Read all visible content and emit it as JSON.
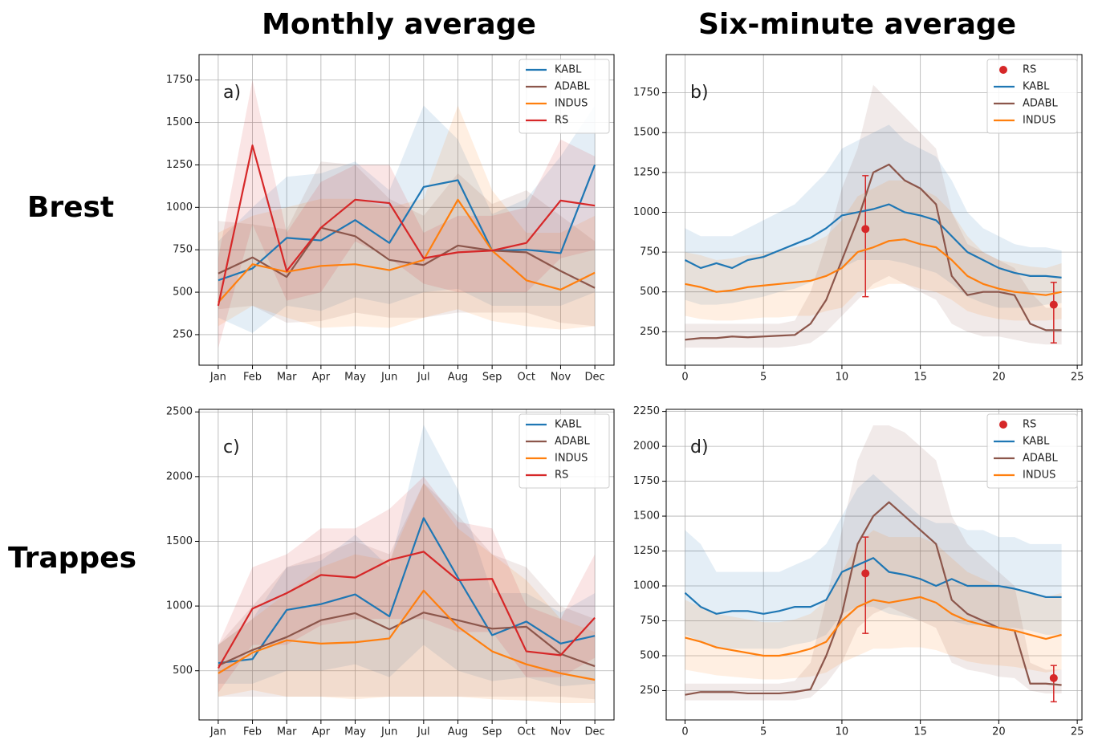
{
  "columns": [
    "Monthly average",
    "Six-minute average"
  ],
  "rows": [
    "Brest",
    "Trappes"
  ],
  "chart_data": [
    {
      "type": "line",
      "label": "a)",
      "grid": true,
      "legend": "upper right",
      "categories": [
        "Jan",
        "Feb",
        "Mar",
        "Apr",
        "May",
        "Jun",
        "Jul",
        "Aug",
        "Sep",
        "Oct",
        "Nov",
        "Dec"
      ],
      "ylim": [
        70,
        1900
      ],
      "yticks": [
        250,
        500,
        750,
        1000,
        1250,
        1500,
        1750
      ],
      "series": [
        {
          "name": "KABL",
          "color": "#1f77b4",
          "values": [
            570,
            640,
            820,
            805,
            925,
            790,
            1120,
            1160,
            745,
            750,
            730,
            1250
          ],
          "lower": [
            350,
            260,
            420,
            390,
            470,
            430,
            500,
            520,
            420,
            420,
            420,
            500
          ],
          "upper": [
            800,
            1000,
            1180,
            1200,
            1270,
            1100,
            1600,
            1400,
            960,
            1050,
            1300,
            1600
          ]
        },
        {
          "name": "ADABL",
          "color": "#8c564b",
          "values": [
            610,
            705,
            590,
            880,
            830,
            690,
            660,
            775,
            745,
            735,
            625,
            525
          ],
          "lower": [
            400,
            420,
            320,
            330,
            380,
            350,
            350,
            380,
            380,
            380,
            320,
            300
          ],
          "upper": [
            920,
            900,
            870,
            1270,
            1250,
            1050,
            950,
            1200,
            1020,
            1100,
            950,
            800
          ]
        },
        {
          "name": "INDUS",
          "color": "#ff7f0e",
          "values": [
            440,
            665,
            620,
            655,
            665,
            630,
            690,
            1045,
            745,
            570,
            515,
            615
          ],
          "lower": [
            300,
            420,
            350,
            290,
            300,
            290,
            350,
            400,
            330,
            300,
            280,
            300
          ],
          "upper": [
            850,
            950,
            1000,
            1050,
            1050,
            1000,
            1050,
            1600,
            1100,
            850,
            850,
            950
          ]
        },
        {
          "name": "RS",
          "color": "#d62728",
          "values": [
            420,
            1365,
            625,
            880,
            1045,
            1025,
            700,
            735,
            745,
            790,
            1040,
            1010
          ],
          "lower": [
            170,
            900,
            450,
            500,
            800,
            700,
            550,
            500,
            500,
            500,
            700,
            750
          ],
          "upper": [
            700,
            1750,
            850,
            1150,
            1250,
            1250,
            850,
            950,
            950,
            1000,
            1400,
            1300
          ]
        }
      ]
    },
    {
      "type": "line",
      "label": "b)",
      "grid": true,
      "legend": "upper right",
      "x": [
        0,
        1,
        2,
        3,
        4,
        5,
        6,
        7,
        8,
        9,
        10,
        11,
        12,
        13,
        14,
        15,
        16,
        17,
        18,
        19,
        20,
        21,
        22,
        23,
        24
      ],
      "xlim": [
        -1.2,
        25.3
      ],
      "xticks": [
        0,
        5,
        10,
        15,
        20,
        25
      ],
      "ylim": [
        40,
        1990
      ],
      "yticks": [
        250,
        500,
        750,
        1000,
        1250,
        1500,
        1750
      ],
      "series": [
        {
          "name": "RS",
          "color": "#d62728",
          "style": "errorbar",
          "x": [
            11.5,
            23.5
          ],
          "values": [
            895,
            420
          ],
          "lower": [
            470,
            180
          ],
          "upper": [
            1230,
            560
          ]
        },
        {
          "name": "KABL",
          "color": "#1f77b4",
          "values": [
            700,
            650,
            680,
            650,
            700,
            720,
            760,
            800,
            840,
            900,
            980,
            1000,
            1020,
            1050,
            1000,
            980,
            950,
            850,
            750,
            700,
            650,
            620,
            600,
            600,
            590
          ],
          "lower": [
            450,
            420,
            420,
            430,
            450,
            470,
            500,
            520,
            560,
            600,
            650,
            700,
            700,
            700,
            680,
            650,
            620,
            550,
            470,
            430,
            400,
            400,
            400,
            420,
            430
          ],
          "upper": [
            900,
            850,
            850,
            850,
            900,
            950,
            1000,
            1050,
            1150,
            1250,
            1400,
            1450,
            1500,
            1550,
            1450,
            1400,
            1350,
            1200,
            1000,
            900,
            850,
            800,
            780,
            780,
            760
          ]
        },
        {
          "name": "ADABL",
          "color": "#8c564b",
          "values": [
            200,
            210,
            210,
            220,
            215,
            220,
            225,
            230,
            300,
            450,
            700,
            950,
            1250,
            1300,
            1200,
            1150,
            1050,
            600,
            480,
            500,
            500,
            480,
            300,
            260,
            260
          ],
          "lower": [
            150,
            150,
            150,
            150,
            150,
            150,
            150,
            160,
            180,
            250,
            350,
            450,
            550,
            600,
            550,
            500,
            450,
            300,
            250,
            220,
            220,
            200,
            180,
            170,
            170
          ],
          "upper": [
            300,
            300,
            300,
            300,
            300,
            300,
            300,
            320,
            500,
            800,
            1150,
            1400,
            1800,
            1700,
            1600,
            1500,
            1400,
            1000,
            800,
            750,
            700,
            650,
            500,
            400,
            400
          ]
        },
        {
          "name": "INDUS",
          "color": "#ff7f0e",
          "values": [
            550,
            530,
            500,
            510,
            530,
            540,
            550,
            560,
            570,
            600,
            650,
            750,
            780,
            820,
            830,
            800,
            780,
            700,
            600,
            550,
            520,
            500,
            490,
            480,
            500
          ],
          "lower": [
            350,
            330,
            320,
            320,
            330,
            340,
            340,
            350,
            350,
            380,
            400,
            500,
            520,
            550,
            550,
            520,
            500,
            450,
            380,
            350,
            330,
            320,
            320,
            320,
            330
          ],
          "upper": [
            750,
            730,
            700,
            710,
            730,
            740,
            760,
            780,
            800,
            850,
            950,
            1100,
            1150,
            1200,
            1200,
            1150,
            1100,
            1000,
            850,
            750,
            700,
            680,
            660,
            650,
            680
          ]
        }
      ]
    },
    {
      "type": "line",
      "label": "c)",
      "grid": true,
      "legend": "upper right",
      "categories": [
        "Jan",
        "Feb",
        "Mar",
        "Apr",
        "May",
        "Jun",
        "Jul",
        "Aug",
        "Sep",
        "Oct",
        "Nov",
        "Dec"
      ],
      "ylim": [
        120,
        2520
      ],
      "yticks": [
        500,
        1000,
        1500,
        2000,
        2500
      ],
      "series": [
        {
          "name": "KABL",
          "color": "#1f77b4",
          "values": [
            560,
            590,
            970,
            1015,
            1090,
            920,
            1680,
            1220,
            775,
            880,
            710,
            770
          ],
          "lower": [
            400,
            400,
            500,
            500,
            550,
            450,
            700,
            500,
            420,
            450,
            380,
            400
          ],
          "upper": [
            700,
            900,
            1300,
            1350,
            1550,
            1300,
            2400,
            1900,
            1100,
            1100,
            950,
            1100
          ]
        },
        {
          "name": "ADABL",
          "color": "#8c564b",
          "values": [
            540,
            660,
            760,
            890,
            945,
            820,
            950,
            890,
            825,
            840,
            630,
            535
          ],
          "lower": [
            300,
            300,
            300,
            300,
            300,
            300,
            300,
            300,
            300,
            300,
            300,
            280
          ],
          "upper": [
            700,
            1000,
            1300,
            1400,
            1500,
            1400,
            1950,
            1700,
            1400,
            1300,
            1000,
            900
          ]
        },
        {
          "name": "INDUS",
          "color": "#ff7f0e",
          "values": [
            480,
            640,
            735,
            710,
            720,
            750,
            1120,
            840,
            650,
            550,
            480,
            430
          ],
          "lower": [
            300,
            350,
            300,
            300,
            280,
            300,
            300,
            300,
            280,
            270,
            250,
            250
          ],
          "upper": [
            700,
            900,
            1100,
            1300,
            1400,
            1350,
            1950,
            1600,
            1400,
            1200,
            900,
            800
          ]
        },
        {
          "name": "RS",
          "color": "#d62728",
          "values": [
            520,
            980,
            1100,
            1240,
            1220,
            1355,
            1420,
            1200,
            1210,
            650,
            620,
            910
          ],
          "lower": [
            330,
            700,
            700,
            850,
            900,
            900,
            900,
            800,
            800,
            450,
            450,
            600
          ],
          "upper": [
            700,
            1300,
            1400,
            1600,
            1600,
            1750,
            2000,
            1650,
            1600,
            1000,
            900,
            1400
          ]
        }
      ]
    },
    {
      "type": "line",
      "label": "d)",
      "grid": true,
      "legend": "upper right",
      "x": [
        0,
        1,
        2,
        3,
        4,
        5,
        6,
        7,
        8,
        9,
        10,
        11,
        12,
        13,
        14,
        15,
        16,
        17,
        18,
        19,
        20,
        21,
        22,
        23,
        24
      ],
      "xlim": [
        -1.2,
        25.3
      ],
      "xticks": [
        0,
        5,
        10,
        15,
        20,
        25
      ],
      "ylim": [
        40,
        2265
      ],
      "yticks": [
        250,
        500,
        750,
        1000,
        1250,
        1500,
        1750,
        2000,
        2250
      ],
      "series": [
        {
          "name": "RS",
          "color": "#d62728",
          "style": "errorbar",
          "x": [
            11.5,
            23.5
          ],
          "values": [
            1090,
            340
          ],
          "lower": [
            660,
            170
          ],
          "upper": [
            1350,
            430
          ]
        },
        {
          "name": "KABL",
          "color": "#1f77b4",
          "values": [
            950,
            850,
            800,
            820,
            820,
            800,
            820,
            850,
            850,
            900,
            1100,
            1150,
            1200,
            1100,
            1080,
            1050,
            1000,
            1050,
            1000,
            1000,
            1000,
            980,
            950,
            920,
            920
          ],
          "lower": [
            650,
            600,
            550,
            550,
            550,
            550,
            550,
            580,
            600,
            650,
            800,
            850,
            850,
            800,
            780,
            750,
            750,
            750,
            720,
            720,
            700,
            700,
            680,
            650,
            650
          ],
          "upper": [
            1400,
            1300,
            1100,
            1100,
            1100,
            1100,
            1100,
            1150,
            1200,
            1300,
            1500,
            1700,
            1800,
            1700,
            1600,
            1500,
            1450,
            1450,
            1400,
            1400,
            1350,
            1350,
            1300,
            1300,
            1300
          ]
        },
        {
          "name": "ADABL",
          "color": "#8c564b",
          "values": [
            220,
            240,
            240,
            240,
            230,
            230,
            230,
            240,
            260,
            500,
            800,
            1300,
            1500,
            1600,
            1500,
            1400,
            1300,
            900,
            800,
            750,
            700,
            680,
            300,
            300,
            290
          ],
          "lower": [
            180,
            180,
            180,
            180,
            180,
            180,
            180,
            180,
            200,
            300,
            450,
            700,
            800,
            850,
            800,
            750,
            700,
            450,
            400,
            380,
            350,
            340,
            250,
            230,
            230
          ],
          "upper": [
            300,
            300,
            300,
            300,
            300,
            300,
            300,
            320,
            450,
            900,
            1400,
            1900,
            2150,
            2150,
            2100,
            2000,
            1900,
            1500,
            1300,
            1200,
            1100,
            1000,
            450,
            400,
            400
          ]
        },
        {
          "name": "INDUS",
          "color": "#ff7f0e",
          "values": [
            630,
            600,
            560,
            540,
            520,
            500,
            500,
            520,
            550,
            600,
            750,
            850,
            900,
            880,
            900,
            920,
            880,
            800,
            750,
            720,
            700,
            680,
            650,
            620,
            650
          ],
          "lower": [
            400,
            380,
            360,
            350,
            340,
            330,
            330,
            340,
            350,
            380,
            450,
            500,
            550,
            550,
            560,
            560,
            540,
            500,
            460,
            440,
            430,
            420,
            400,
            380,
            400
          ],
          "upper": [
            900,
            850,
            800,
            780,
            760,
            740,
            740,
            760,
            800,
            900,
            1100,
            1300,
            1400,
            1350,
            1350,
            1350,
            1300,
            1200,
            1100,
            1050,
            1000,
            980,
            950,
            920,
            950
          ]
        }
      ]
    }
  ]
}
